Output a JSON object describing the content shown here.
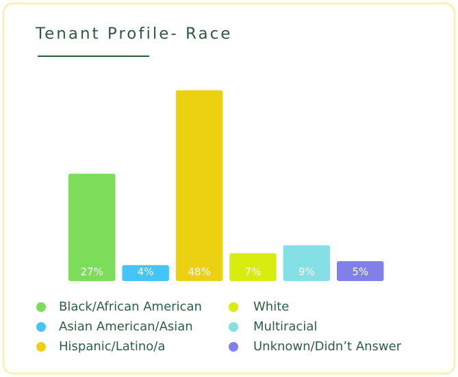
{
  "chart_data": {
    "type": "bar",
    "title": "Tenant Profile- Race",
    "categories": [
      "Black/African American",
      "Asian American/Asian",
      "Hispanic/Latino/a",
      "White",
      "Multiracial",
      "Unknown/Didn’t Answer"
    ],
    "values": [
      27,
      4,
      48,
      7,
      9,
      5
    ],
    "value_labels": [
      "27%",
      "4%",
      "48%",
      "7%",
      "9%",
      "5%"
    ],
    "colors": [
      "#7ddc5a",
      "#45c4f5",
      "#ecd012",
      "#d8ec10",
      "#85e0e6",
      "#8080e8"
    ]
  }
}
